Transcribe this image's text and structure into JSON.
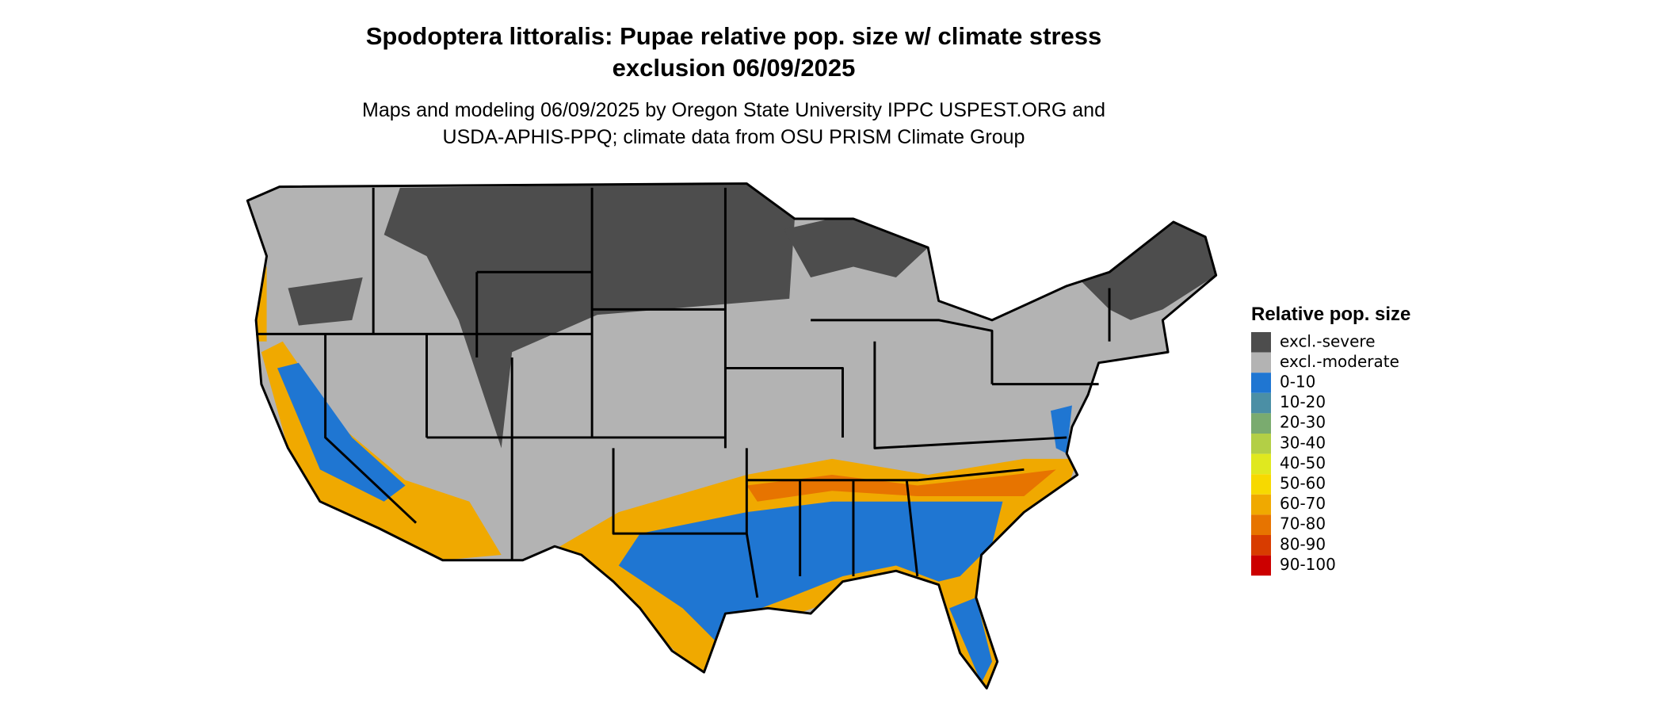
{
  "header": {
    "title": [
      "Spodoptera littoralis: Pupae relative pop. size w/ climate stress",
      "exclusion 06/09/2025"
    ],
    "subtitle": [
      "Maps and modeling 06/09/2025 by Oregon State University IPPC USPEST.ORG and",
      "USDA-APHIS-PPQ; climate data from OSU PRISM Climate Group"
    ]
  },
  "legend": {
    "title": "Relative pop. size",
    "items": [
      {
        "label": "excl.-severe",
        "color": "#4d4d4d"
      },
      {
        "label": "excl.-moderate",
        "color": "#b3b3b3"
      },
      {
        "label": "0-10",
        "color": "#1f76d2"
      },
      {
        "label": "10-20",
        "color": "#4b8fa5"
      },
      {
        "label": "20-30",
        "color": "#7aab6f"
      },
      {
        "label": "30-40",
        "color": "#b3cf46"
      },
      {
        "label": "40-50",
        "color": "#e0e81f"
      },
      {
        "label": "50-60",
        "color": "#f7d900"
      },
      {
        "label": "60-70",
        "color": "#f0a900"
      },
      {
        "label": "70-80",
        "color": "#e77400"
      },
      {
        "label": "80-90",
        "color": "#d83c00"
      },
      {
        "label": "90-100",
        "color": "#cc0000"
      }
    ]
  }
}
